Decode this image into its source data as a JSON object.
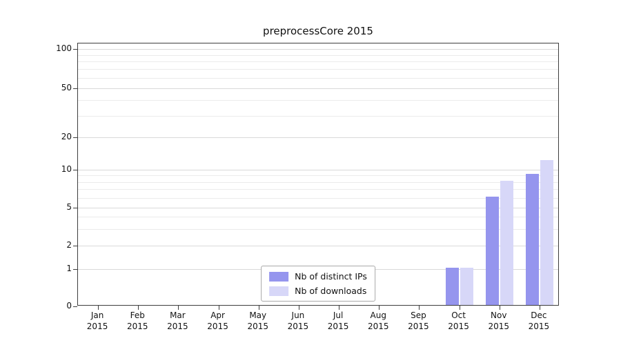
{
  "title": "preprocessCore 2015",
  "colors": {
    "ips": "#9595ee",
    "downloads": "#d7d7f8",
    "grid_major": "#d9d9d9",
    "grid_minor": "#ebebeb",
    "spine": "#3c3c3c"
  },
  "legend": {
    "items": [
      {
        "label": "Nb of distinct IPs",
        "series": "ips"
      },
      {
        "label": "Nb of downloads",
        "series": "downloads"
      }
    ]
  },
  "chart_data": {
    "type": "bar",
    "title": "preprocessCore 2015",
    "categories": [
      "Jan",
      "Feb",
      "Mar",
      "Apr",
      "May",
      "Jun",
      "Jul",
      "Aug",
      "Sep",
      "Oct",
      "Nov",
      "Dec"
    ],
    "year_label": "2015",
    "series": [
      {
        "name": "Nb of distinct IPs",
        "color": "#9595ee",
        "values": [
          0,
          0,
          0,
          0,
          0,
          0,
          0,
          0,
          0,
          1,
          6,
          9
        ]
      },
      {
        "name": "Nb of downloads",
        "color": "#d7d7f8",
        "values": [
          0,
          0,
          0,
          0,
          0,
          0,
          0,
          0,
          0,
          1,
          8,
          12
        ]
      }
    ],
    "xlabel": "",
    "ylabel": "",
    "yticks": [
      0,
      1,
      2,
      5,
      10,
      20,
      50,
      100
    ],
    "ytick_fractions_from_top": [
      1.0,
      0.858,
      0.769,
      0.625,
      0.48,
      0.357,
      0.171,
      0.021
    ],
    "minor_yticks": [
      3,
      4,
      6,
      7,
      8,
      9,
      30,
      40,
      60,
      70,
      80,
      90
    ],
    "scale": "log-like",
    "ylim": [
      0,
      100
    ],
    "grid": true,
    "legend_position": "lower center inside plot"
  }
}
